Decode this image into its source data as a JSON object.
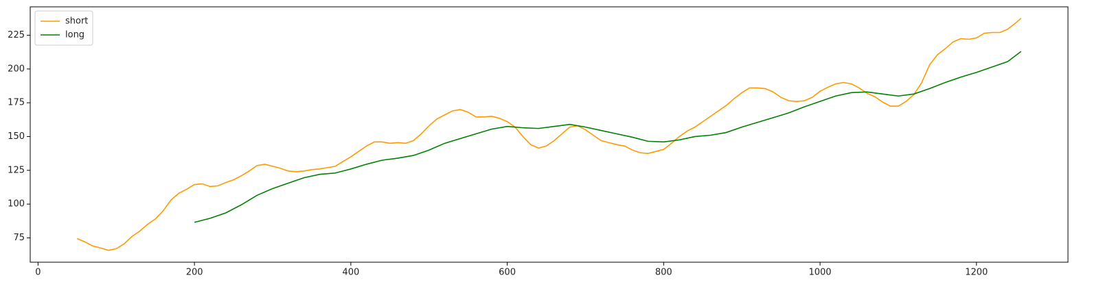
{
  "chart_data": {
    "type": "line",
    "series": [
      {
        "name": "short",
        "color": "#ff9900",
        "x": [
          50,
          60,
          70,
          80,
          90,
          100,
          110,
          120,
          130,
          140,
          150,
          160,
          170,
          180,
          190,
          200,
          210,
          220,
          230,
          240,
          250,
          260,
          270,
          280,
          290,
          300,
          310,
          320,
          330,
          340,
          350,
          360,
          370,
          380,
          390,
          400,
          410,
          420,
          430,
          440,
          450,
          460,
          470,
          480,
          490,
          500,
          510,
          520,
          530,
          540,
          550,
          560,
          570,
          580,
          590,
          600,
          610,
          620,
          630,
          640,
          650,
          660,
          670,
          680,
          690,
          700,
          710,
          720,
          730,
          740,
          750,
          760,
          770,
          780,
          790,
          800,
          810,
          820,
          830,
          840,
          850,
          860,
          870,
          880,
          890,
          900,
          910,
          920,
          930,
          940,
          950,
          960,
          970,
          980,
          990,
          1000,
          1010,
          1020,
          1030,
          1040,
          1050,
          1060,
          1070,
          1080,
          1090,
          1100,
          1110,
          1120,
          1130,
          1140,
          1150,
          1160,
          1170,
          1180,
          1190,
          1200,
          1210,
          1220,
          1230,
          1240,
          1250,
          1257
        ],
        "values": [
          74.5,
          72,
          69,
          67.5,
          65.8,
          67,
          70.5,
          76,
          80,
          85,
          89,
          95,
          103,
          108,
          111,
          114.5,
          115,
          113,
          113.5,
          116,
          118,
          121,
          124.5,
          128.5,
          129.5,
          128,
          126.5,
          124.5,
          124,
          124.5,
          125.5,
          126,
          127,
          128,
          131.5,
          135,
          139,
          143,
          146,
          146,
          145,
          145.5,
          145,
          147,
          152,
          158,
          163,
          166,
          169,
          170,
          168,
          164.5,
          164.5,
          165,
          163.5,
          161,
          157,
          150,
          144,
          141.5,
          143,
          147,
          152,
          157,
          158,
          155,
          151,
          147,
          145.5,
          144,
          143,
          140,
          138,
          137.5,
          139,
          140.5,
          145,
          150,
          154,
          157,
          161,
          165,
          169,
          173,
          178,
          182.5,
          186,
          186,
          185.5,
          183,
          179,
          176.5,
          176,
          176.5,
          179,
          183.5,
          186.5,
          189,
          190,
          189,
          186,
          182,
          179.5,
          175.5,
          172.5,
          172.5,
          176,
          181,
          190,
          203,
          210.5,
          215,
          220,
          222.5,
          222,
          223,
          226.5,
          227,
          227,
          229.5,
          234,
          237.5
        ]
      },
      {
        "name": "long",
        "color": "#008000",
        "x": [
          200,
          220,
          240,
          260,
          280,
          300,
          320,
          340,
          360,
          380,
          400,
          420,
          440,
          460,
          480,
          500,
          520,
          540,
          560,
          580,
          600,
          620,
          640,
          660,
          680,
          700,
          720,
          740,
          760,
          780,
          800,
          820,
          840,
          860,
          880,
          900,
          920,
          940,
          960,
          980,
          1000,
          1020,
          1040,
          1060,
          1080,
          1100,
          1120,
          1140,
          1160,
          1180,
          1200,
          1220,
          1240,
          1257
        ],
        "values": [
          86.5,
          89.5,
          93.5,
          99.5,
          106.5,
          111.5,
          115.5,
          119.5,
          122,
          123,
          126,
          129.5,
          132.5,
          134,
          136,
          140,
          145,
          148.5,
          152,
          155.5,
          157.5,
          156.5,
          156,
          157.5,
          159,
          157,
          154.5,
          152,
          149.5,
          146.5,
          146,
          147.5,
          150,
          151,
          153,
          157,
          160.5,
          164,
          167.5,
          172,
          176,
          180,
          182.5,
          183,
          181.5,
          180,
          181.5,
          185.5,
          190,
          194,
          197.5,
          201.5,
          205.5,
          213
        ]
      }
    ],
    "xlim": [
      -10,
      1317
    ],
    "xticks": [
      0,
      200,
      400,
      600,
      800,
      1000,
      1200
    ],
    "ylim": [
      57,
      246
    ],
    "yticks": [
      75,
      100,
      125,
      150,
      175,
      200,
      225
    ],
    "legend": "upper left"
  }
}
